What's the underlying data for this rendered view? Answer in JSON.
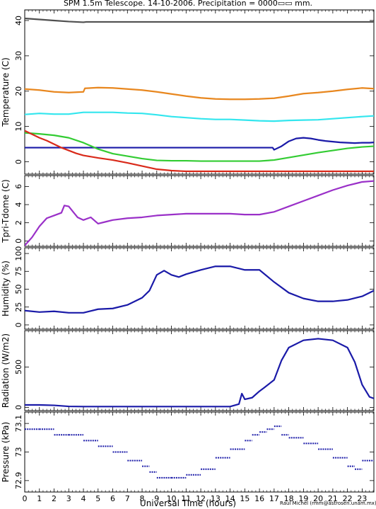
{
  "title": "SPM 1.5m Telescope. 14-10-2006. Precipitation = 0000▭▭ mm.",
  "xlabel": "Universal Time (hours)",
  "credit": "Raul Michel (rmm@astrosen.unam.mx)",
  "xticks": [
    0,
    1,
    2,
    3,
    4,
    5,
    6,
    7,
    8,
    9,
    10,
    11,
    12,
    13,
    14,
    15,
    16,
    17,
    18,
    19,
    20,
    21,
    22,
    23
  ],
  "xlim": [
    0,
    23.8
  ],
  "chart_data": [
    {
      "type": "line",
      "ylabel": "Temperature (C)",
      "ylim": [
        -3.5,
        43
      ],
      "yticks": [
        0,
        10,
        20,
        30,
        40
      ],
      "series": [
        {
          "color": "#505050",
          "points": [
            [
              0,
              40.6
            ],
            [
              1,
              40.3
            ],
            [
              2,
              40.0
            ],
            [
              3,
              39.7
            ],
            [
              4,
              39.5
            ],
            [
              4.2,
              39.6
            ],
            [
              23.8,
              39.6
            ]
          ]
        },
        {
          "color": "#e8871f",
          "points": [
            [
              0,
              20.6
            ],
            [
              1,
              20.3
            ],
            [
              2,
              19.8
            ],
            [
              3,
              19.6
            ],
            [
              4,
              19.8
            ],
            [
              4.1,
              20.8
            ],
            [
              5,
              21.0
            ],
            [
              6,
              20.9
            ],
            [
              7,
              20.6
            ],
            [
              8,
              20.3
            ],
            [
              9,
              19.8
            ],
            [
              10,
              19.2
            ],
            [
              11,
              18.6
            ],
            [
              12,
              18.1
            ],
            [
              13,
              17.8
            ],
            [
              14,
              17.7
            ],
            [
              15,
              17.7
            ],
            [
              16,
              17.8
            ],
            [
              17,
              18.0
            ],
            [
              18,
              18.6
            ],
            [
              19,
              19.3
            ],
            [
              20,
              19.6
            ],
            [
              21,
              20.0
            ],
            [
              22,
              20.5
            ],
            [
              23,
              20.9
            ],
            [
              23.8,
              20.7
            ]
          ]
        },
        {
          "color": "#33e6ee",
          "points": [
            [
              0,
              13.4
            ],
            [
              1,
              13.7
            ],
            [
              2,
              13.5
            ],
            [
              3,
              13.5
            ],
            [
              4,
              14.0
            ],
            [
              5,
              14.0
            ],
            [
              6,
              14.0
            ],
            [
              7,
              13.8
            ],
            [
              8,
              13.7
            ],
            [
              9,
              13.3
            ],
            [
              10,
              12.8
            ],
            [
              11,
              12.5
            ],
            [
              12,
              12.2
            ],
            [
              13,
              12.0
            ],
            [
              14,
              12.0
            ],
            [
              15,
              11.8
            ],
            [
              16,
              11.6
            ],
            [
              17,
              11.5
            ],
            [
              18,
              11.7
            ],
            [
              19,
              11.8
            ],
            [
              20,
              11.9
            ],
            [
              21,
              12.2
            ],
            [
              22,
              12.5
            ],
            [
              23,
              12.8
            ],
            [
              23.8,
              13.0
            ]
          ]
        },
        {
          "color": "#1a1aa8",
          "points": [
            [
              0,
              4.0
            ],
            [
              4,
              4.0
            ],
            [
              6,
              4.0
            ],
            [
              8,
              4.0
            ],
            [
              10,
              4.0
            ],
            [
              12,
              4.0
            ],
            [
              14,
              4.0
            ],
            [
              16,
              4.0
            ],
            [
              16.9,
              4.0
            ],
            [
              17,
              3.4
            ],
            [
              17.5,
              4.4
            ],
            [
              18,
              5.8
            ],
            [
              18.5,
              6.6
            ],
            [
              19,
              6.8
            ],
            [
              19.5,
              6.6
            ],
            [
              20,
              6.2
            ],
            [
              20.5,
              5.9
            ],
            [
              21,
              5.7
            ],
            [
              21.5,
              5.5
            ],
            [
              22,
              5.4
            ],
            [
              22.5,
              5.3
            ],
            [
              23,
              5.4
            ],
            [
              23.5,
              5.4
            ],
            [
              23.8,
              5.5
            ]
          ]
        },
        {
          "color": "#33cc33",
          "points": [
            [
              0,
              8.2
            ],
            [
              1,
              7.9
            ],
            [
              2,
              7.5
            ],
            [
              3,
              6.8
            ],
            [
              4,
              5.4
            ],
            [
              5,
              3.6
            ],
            [
              6,
              2.3
            ],
            [
              7,
              1.6
            ],
            [
              8,
              0.9
            ],
            [
              9,
              0.4
            ],
            [
              10,
              0.3
            ],
            [
              11,
              0.3
            ],
            [
              12,
              0.2
            ],
            [
              13,
              0.2
            ],
            [
              14,
              0.2
            ],
            [
              15,
              0.2
            ],
            [
              16,
              0.2
            ],
            [
              17,
              0.5
            ],
            [
              18,
              1.2
            ],
            [
              19,
              1.9
            ],
            [
              20,
              2.6
            ],
            [
              21,
              3.2
            ],
            [
              22,
              3.8
            ],
            [
              23,
              4.2
            ],
            [
              23.8,
              4.4
            ]
          ]
        },
        {
          "color": "#d92a1a",
          "points": [
            [
              0,
              8.8
            ],
            [
              0.5,
              7.8
            ],
            [
              1,
              6.8
            ],
            [
              1.5,
              6.0
            ],
            [
              2,
              5.0
            ],
            [
              2.5,
              4.0
            ],
            [
              3,
              3.2
            ],
            [
              3.5,
              2.4
            ],
            [
              4,
              1.8
            ],
            [
              5,
              1.1
            ],
            [
              6,
              0.5
            ],
            [
              7,
              -0.3
            ],
            [
              8,
              -1.2
            ],
            [
              9,
              -2.1
            ],
            [
              10,
              -2.5
            ],
            [
              11,
              -2.7
            ],
            [
              12,
              -2.7
            ],
            [
              14,
              -2.7
            ],
            [
              16,
              -2.7
            ],
            [
              18,
              -2.7
            ],
            [
              20,
              -2.7
            ],
            [
              22,
              -2.7
            ],
            [
              23.8,
              -2.7
            ]
          ]
        }
      ]
    },
    {
      "type": "line",
      "ylabel": "Tpri-Tdome (C)",
      "ylim": [
        -0.6,
        7.2
      ],
      "yticks": [
        0,
        2,
        4,
        6
      ],
      "series": [
        {
          "color": "#9a30c8",
          "points": [
            [
              0,
              -0.5
            ],
            [
              0.5,
              0.4
            ],
            [
              1,
              1.6
            ],
            [
              1.5,
              2.5
            ],
            [
              2,
              2.8
            ],
            [
              2.5,
              3.1
            ],
            [
              2.7,
              3.9
            ],
            [
              3,
              3.8
            ],
            [
              3.3,
              3.2
            ],
            [
              3.6,
              2.6
            ],
            [
              4,
              2.3
            ],
            [
              4.5,
              2.6
            ],
            [
              5,
              1.9
            ],
            [
              5.5,
              2.1
            ],
            [
              6,
              2.3
            ],
            [
              7,
              2.5
            ],
            [
              8,
              2.6
            ],
            [
              9,
              2.8
            ],
            [
              10,
              2.9
            ],
            [
              11,
              3.0
            ],
            [
              12,
              3.0
            ],
            [
              13,
              3.0
            ],
            [
              14,
              3.0
            ],
            [
              15,
              2.9
            ],
            [
              16,
              2.9
            ],
            [
              17,
              3.2
            ],
            [
              18,
              3.8
            ],
            [
              19,
              4.4
            ],
            [
              20,
              5.0
            ],
            [
              21,
              5.6
            ],
            [
              22,
              6.1
            ],
            [
              23,
              6.5
            ],
            [
              23.8,
              6.6
            ]
          ]
        }
      ]
    },
    {
      "type": "line",
      "ylabel": "Humidity (%)",
      "ylim": [
        -6,
        108
      ],
      "yticks": [
        0,
        25,
        50,
        75,
        100
      ],
      "series": [
        {
          "color": "#1a1aa8",
          "points": [
            [
              0,
              20
            ],
            [
              1,
              18
            ],
            [
              2,
              19
            ],
            [
              3,
              17
            ],
            [
              4,
              17
            ],
            [
              5,
              22
            ],
            [
              6,
              23
            ],
            [
              7,
              28
            ],
            [
              8,
              38
            ],
            [
              8.5,
              48
            ],
            [
              9,
              70
            ],
            [
              9.5,
              76
            ],
            [
              10,
              70
            ],
            [
              10.5,
              67
            ],
            [
              11,
              71
            ],
            [
              12,
              77
            ],
            [
              13,
              82
            ],
            [
              14,
              82
            ],
            [
              15,
              77
            ],
            [
              16,
              77
            ],
            [
              17,
              60
            ],
            [
              18,
              45
            ],
            [
              19,
              37
            ],
            [
              20,
              33
            ],
            [
              21,
              33
            ],
            [
              22,
              35
            ],
            [
              23,
              40
            ],
            [
              23.8,
              48
            ]
          ]
        }
      ]
    },
    {
      "type": "line",
      "ylabel": "Radiation (W/m2)",
      "ylim": [
        -40,
        950
      ],
      "yticks": [
        0,
        500
      ],
      "series": [
        {
          "color": "#1a1aa8",
          "points": [
            [
              0,
              30
            ],
            [
              1,
              30
            ],
            [
              2,
              25
            ],
            [
              3,
              12
            ],
            [
              4,
              10
            ],
            [
              6,
              10
            ],
            [
              8,
              10
            ],
            [
              10,
              10
            ],
            [
              12,
              10
            ],
            [
              14,
              10
            ],
            [
              14.6,
              40
            ],
            [
              14.8,
              170
            ],
            [
              15,
              100
            ],
            [
              15.5,
              120
            ],
            [
              16,
              200
            ],
            [
              16.3,
              240
            ],
            [
              17,
              340
            ],
            [
              17.5,
              580
            ],
            [
              18,
              740
            ],
            [
              19,
              830
            ],
            [
              20,
              850
            ],
            [
              21,
              830
            ],
            [
              22,
              740
            ],
            [
              22.5,
              560
            ],
            [
              23,
              280
            ],
            [
              23.5,
              130
            ],
            [
              23.8,
              110
            ]
          ]
        }
      ]
    },
    {
      "type": "scatter",
      "ylabel": "Pressure (kPa)",
      "ylim": [
        72.86,
        73.14
      ],
      "yticks": [
        72.9,
        73,
        73.1
      ],
      "yticklabels": [
        "72.9",
        "73",
        "73.1"
      ],
      "series": [
        {
          "color": "#1a1aa8",
          "points": [
            [
              0,
              73.08
            ],
            [
              1,
              73.08
            ],
            [
              2,
              73.06
            ],
            [
              3,
              73.06
            ],
            [
              4,
              73.04
            ],
            [
              5,
              73.02
            ],
            [
              6,
              73.0
            ],
            [
              7,
              72.97
            ],
            [
              8,
              72.95
            ],
            [
              8.5,
              72.93
            ],
            [
              9,
              72.91
            ],
            [
              10,
              72.91
            ],
            [
              11,
              72.92
            ],
            [
              12,
              72.94
            ],
            [
              13,
              72.98
            ],
            [
              14,
              73.01
            ],
            [
              15,
              73.04
            ],
            [
              15.5,
              73.06
            ],
            [
              16,
              73.07
            ],
            [
              16.5,
              73.08
            ],
            [
              17,
              73.09
            ],
            [
              17.5,
              73.06
            ],
            [
              18,
              73.05
            ],
            [
              19,
              73.03
            ],
            [
              20,
              73.01
            ],
            [
              21,
              72.98
            ],
            [
              22,
              72.95
            ],
            [
              22.5,
              72.94
            ],
            [
              23,
              72.97
            ],
            [
              23.8,
              72.99
            ]
          ]
        }
      ]
    }
  ]
}
